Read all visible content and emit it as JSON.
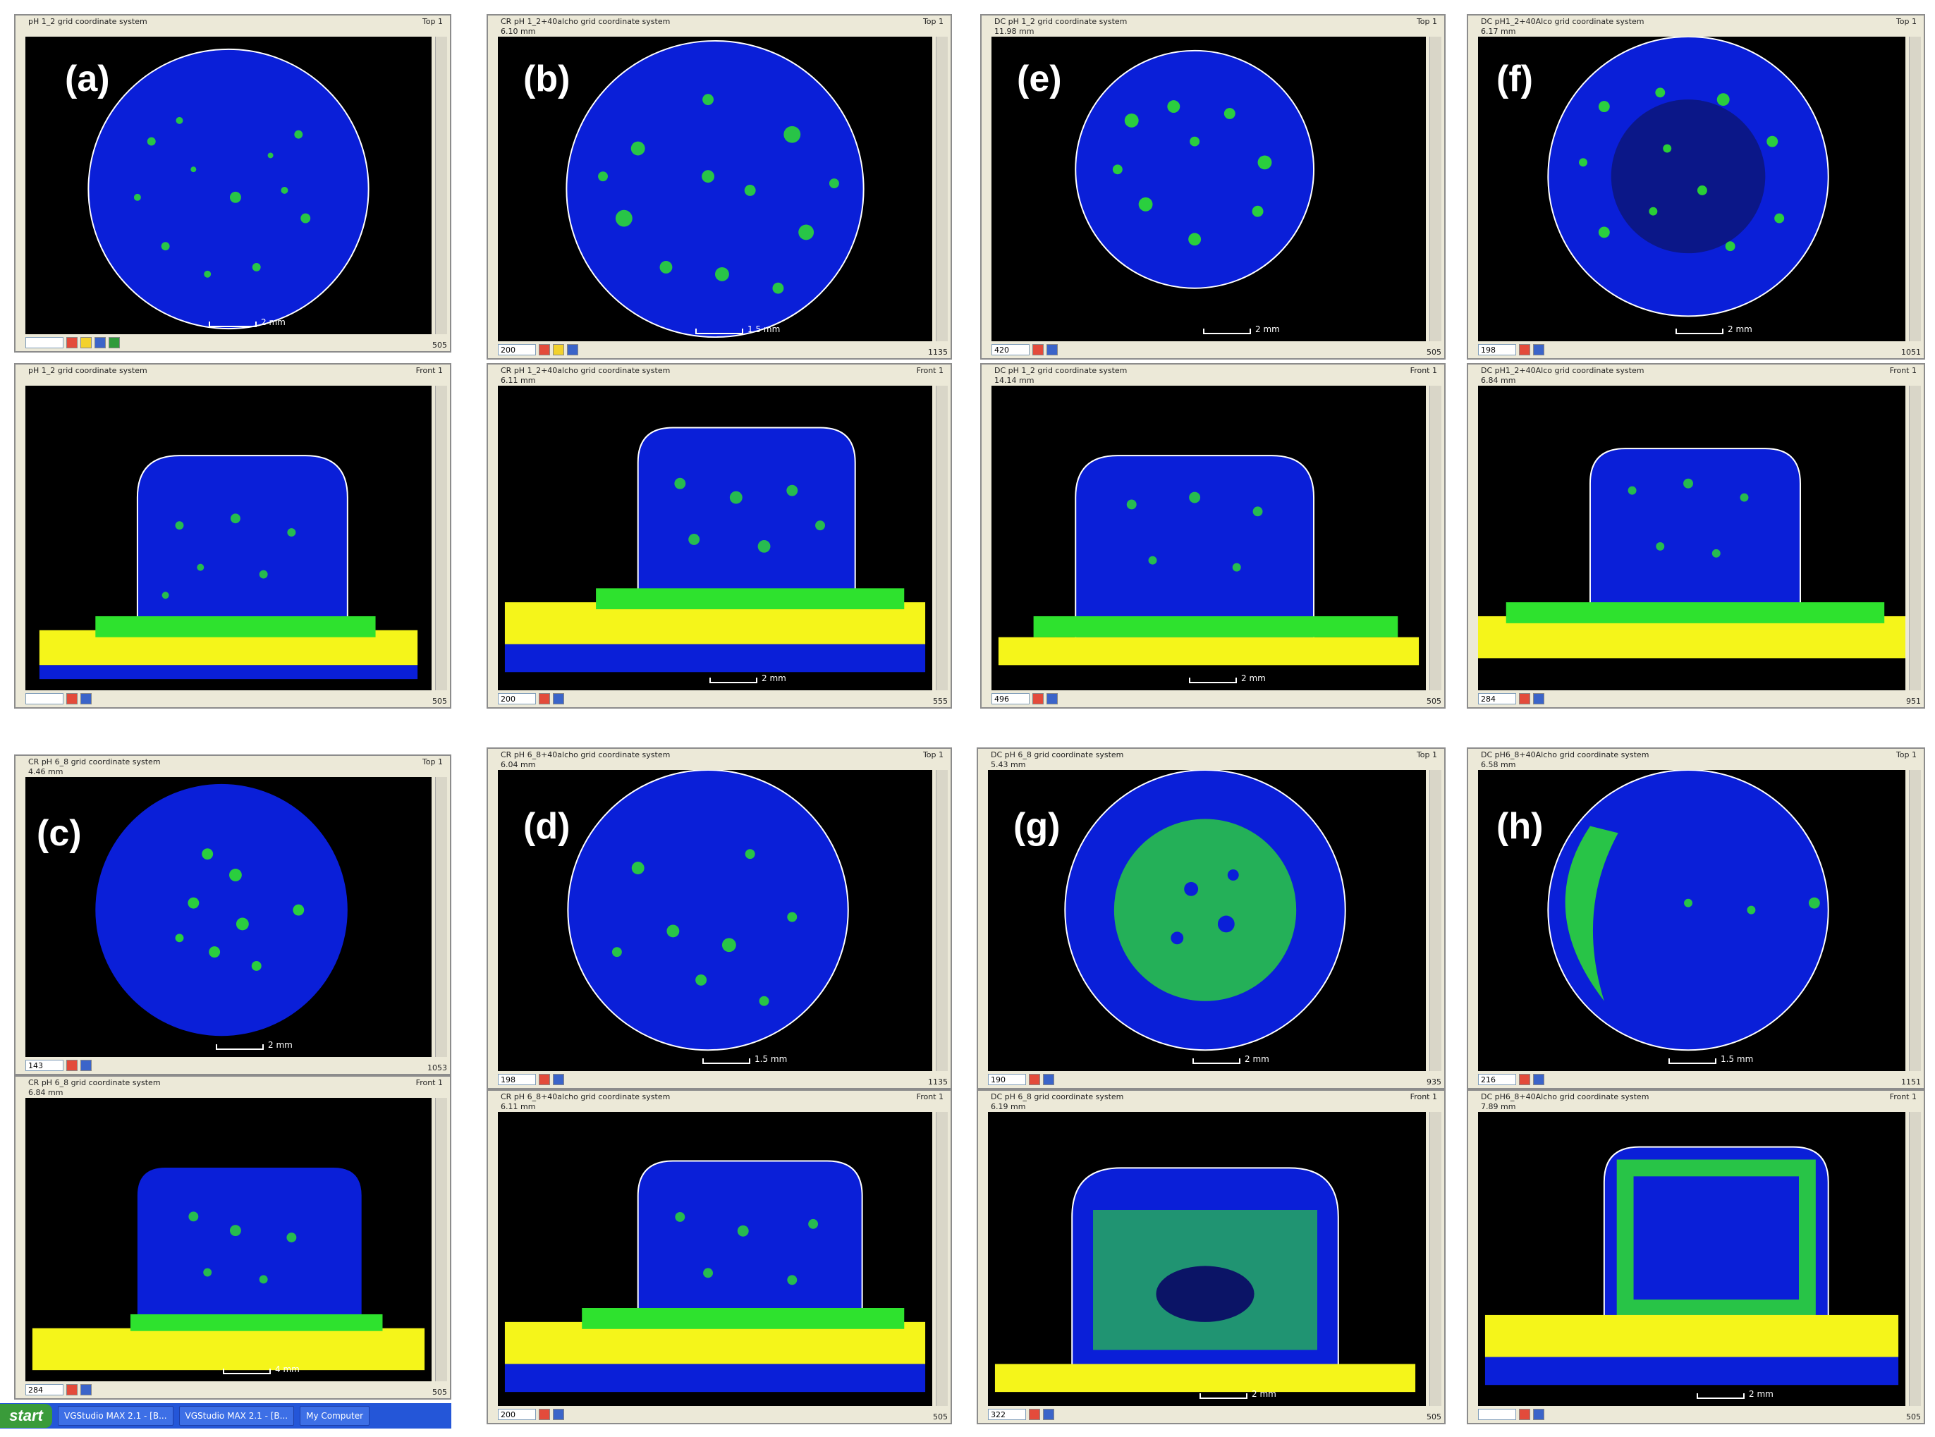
{
  "panels": [
    {
      "label": "(a)",
      "top": {
        "title": "pH 1_2 grid coordinate system",
        "sub": "",
        "view": "Top 1",
        "zoom": "",
        "scale": "2 mm",
        "counter": "505"
      },
      "front": {
        "title": "pH 1_2 grid coordinate system",
        "sub": "",
        "view": "Front 1",
        "zoom": "",
        "scale": "",
        "counter": "505"
      }
    },
    {
      "label": "(b)",
      "top": {
        "title": "CR pH 1_2+40alcho grid coordinate system",
        "sub": "6.10 mm",
        "view": "Top 1",
        "zoom": "200",
        "scale": "1.5 mm",
        "counter": "1135"
      },
      "front": {
        "title": "CR pH 1_2+40alcho grid coordinate system",
        "sub": "6.11 mm",
        "view": "Front 1",
        "zoom": "200",
        "scale": "2 mm",
        "counter": "555"
      }
    },
    {
      "label": "(e)",
      "top": {
        "title": "DC pH 1_2 grid coordinate system",
        "sub": "11.98 mm",
        "view": "Top 1",
        "zoom": "420",
        "scale": "2 mm",
        "counter": "505"
      },
      "front": {
        "title": "DC pH 1_2 grid coordinate system",
        "sub": "14.14 mm",
        "view": "Front 1",
        "zoom": "496",
        "scale": "2 mm",
        "counter": "505"
      }
    },
    {
      "label": "(f)",
      "top": {
        "title": "DC pH1_2+40Alco grid coordinate system",
        "sub": "6.17 mm",
        "view": "Top 1",
        "zoom": "198",
        "scale": "2 mm",
        "counter": "1051"
      },
      "front": {
        "title": "DC pH1_2+40Alco grid coordinate system",
        "sub": "6.84 mm",
        "view": "Front 1",
        "zoom": "284",
        "scale": "",
        "counter": "951"
      }
    },
    {
      "label": "(c)",
      "top": {
        "title": "CR pH 6_8 grid coordinate system",
        "sub": "4.46 mm",
        "view": "Top 1",
        "zoom": "143",
        "scale": "2 mm",
        "counter": "1053"
      },
      "front": {
        "title": "CR pH 6_8 grid coordinate system",
        "sub": "6.84 mm",
        "view": "Front 1",
        "zoom": "284",
        "scale": "4 mm",
        "counter": "505"
      }
    },
    {
      "label": "(d)",
      "top": {
        "title": "CR pH 6_8+40alcho grid coordinate system",
        "sub": "6.04 mm",
        "view": "Top 1",
        "zoom": "198",
        "scale": "1.5 mm",
        "counter": "1135"
      },
      "front": {
        "title": "CR pH 6_8+40alcho grid coordinate system",
        "sub": "6.11 mm",
        "view": "Front 1",
        "zoom": "200",
        "scale": "",
        "counter": "505"
      }
    },
    {
      "label": "(g)",
      "top": {
        "title": "DC pH 6_8 grid coordinate system",
        "sub": "5.43 mm",
        "view": "Top 1",
        "zoom": "190",
        "scale": "2 mm",
        "counter": "935"
      },
      "front": {
        "title": "DC pH 6_8 grid coordinate system",
        "sub": "6.19 mm",
        "view": "Front 1",
        "zoom": "322",
        "scale": "2 mm",
        "counter": "505"
      }
    },
    {
      "label": "(h)",
      "top": {
        "title": "DC pH6_8+40Alcho grid coordinate system",
        "sub": "6.58 mm",
        "view": "Top 1",
        "zoom": "216",
        "scale": "1.5 mm",
        "counter": "1151"
      },
      "front": {
        "title": "DC pH6_8+40Alcho grid coordinate system",
        "sub": "7.89 mm",
        "view": "Front 1",
        "zoom": "",
        "scale": "2 mm",
        "counter": "505"
      }
    }
  ],
  "taskbar": {
    "start": "start",
    "items": [
      "VGStudio MAX 2.1 - [B...",
      "VGStudio MAX 2.1 - [B...",
      "My Computer"
    ]
  },
  "colors": {
    "blue": "#0a1fd8",
    "green": "#2ee22e",
    "yellow": "#f5f51a",
    "black": "#000000"
  }
}
